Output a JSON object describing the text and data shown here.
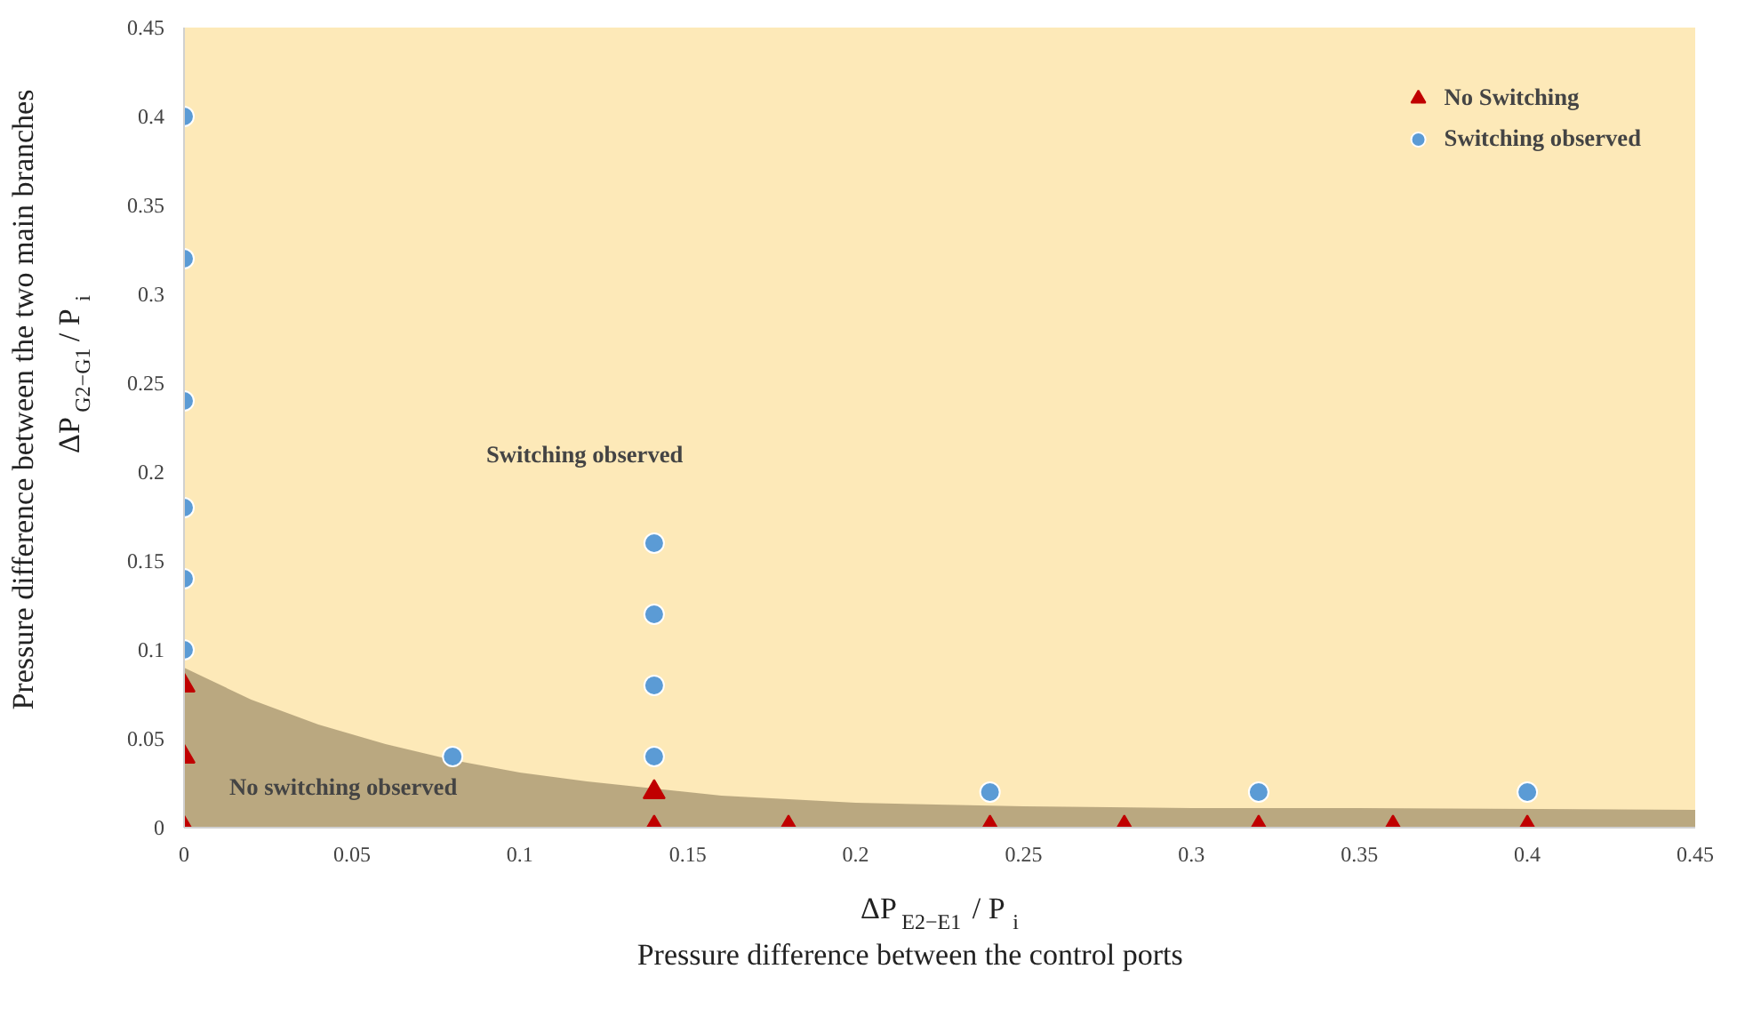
{
  "chart_data": {
    "type": "scatter",
    "xlabel": "ΔP$_{E2−E1}$ / P$_{i}$\nPressure difference between the control ports",
    "ylabel": "Pressure difference between the two main branches\nΔP$_{G2−G1}$ / P$_{i}$",
    "xlim": [
      0,
      0.45
    ],
    "ylim": [
      0,
      0.45
    ],
    "xticks": [
      0,
      0.05,
      0.1,
      0.15,
      0.2,
      0.25,
      0.3,
      0.35,
      0.4,
      0.45
    ],
    "yticks": [
      0,
      0.05,
      0.1,
      0.15,
      0.2,
      0.25,
      0.3,
      0.35,
      0.4,
      0.45
    ],
    "grid": false,
    "legend": "top right",
    "series": [
      {
        "type": "area",
        "color": "#b3a17a",
        "x": [
          0,
          0.02,
          0.04,
          0.06,
          0.08,
          0.1,
          0.12,
          0.14,
          0.16,
          0.2,
          0.25,
          0.3,
          0.35,
          0.45
        ],
        "values": [
          0.09,
          0.072,
          0.058,
          0.047,
          0.038,
          0.031,
          0.026,
          0.022,
          0.018,
          0.014,
          0.012,
          0.011,
          0.011,
          0.01
        ]
      },
      {
        "name": "No Switching",
        "marker": "triangle",
        "color": "#c00000",
        "x": [
          0,
          0,
          0,
          0.14,
          0.14,
          0.18,
          0.24,
          0.28,
          0.32,
          0.36,
          0.4
        ],
        "values": [
          0.08,
          0.04,
          0,
          0.02,
          0,
          0,
          0,
          0,
          0,
          0,
          0
        ]
      },
      {
        "name": "Switching observed",
        "marker": "circle",
        "color": "#5b9bd5",
        "x": [
          0,
          0,
          0,
          0,
          0,
          0,
          0.08,
          0.14,
          0.14,
          0.14,
          0.14,
          0.24,
          0.32,
          0.4
        ],
        "values": [
          0.4,
          0.32,
          0.24,
          0.18,
          0.14,
          0.1,
          0.04,
          0.16,
          0.12,
          0.08,
          0.04,
          0.02,
          0.02,
          0.02
        ]
      }
    ],
    "annotations": [
      "Switching observed",
      "No switching observed"
    ]
  }
}
